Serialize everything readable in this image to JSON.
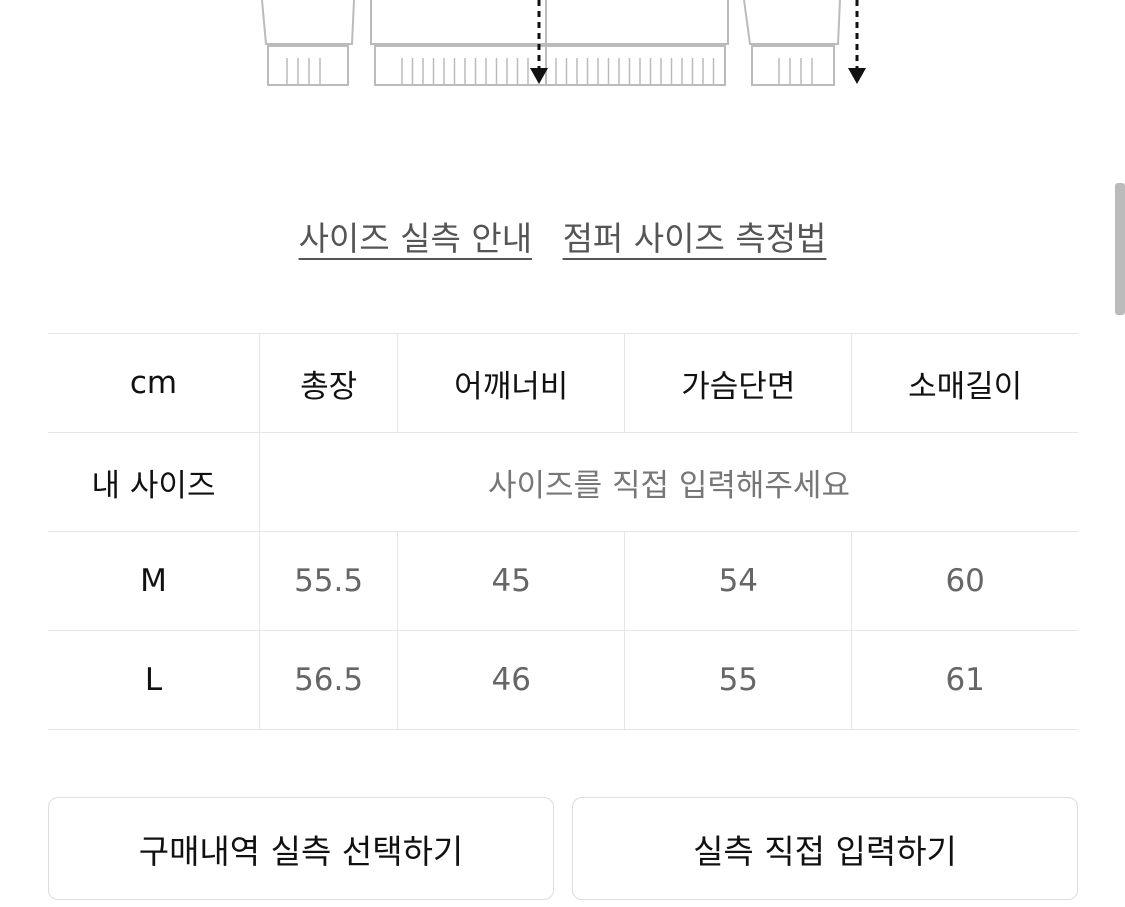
{
  "links": {
    "size_guide": "사이즈 실측 안내",
    "jumper_measure": "점퍼 사이즈 측정법"
  },
  "table": {
    "headers": [
      "cm",
      "총장",
      "어깨너비",
      "가슴단면",
      "소매길이"
    ],
    "my_size": {
      "label": "내 사이즈",
      "placeholder": "사이즈를 직접 입력해주세요"
    },
    "rows": [
      {
        "size": "M",
        "values": [
          "55.5",
          "45",
          "54",
          "60"
        ]
      },
      {
        "size": "L",
        "values": [
          "56.5",
          "46",
          "55",
          "61"
        ]
      }
    ]
  },
  "buttons": {
    "purchase_history": "구매내역 실측 선택하기",
    "manual_input": "실측 직접 입력하기"
  }
}
